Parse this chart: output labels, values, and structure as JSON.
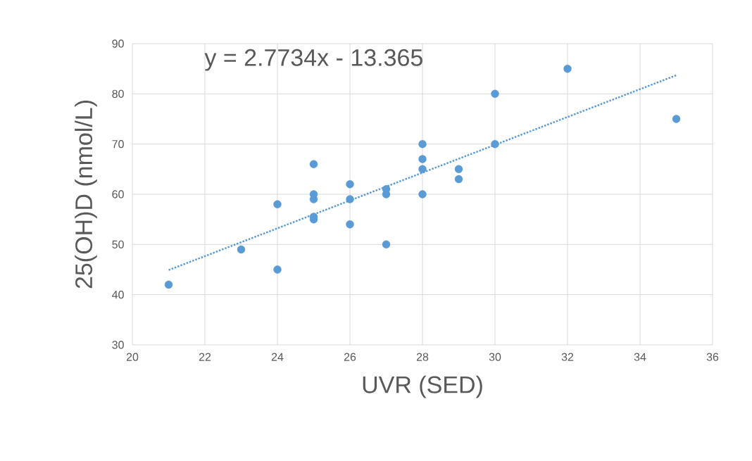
{
  "chart_data": {
    "type": "scatter",
    "xlabel": "UVR (SED)",
    "ylabel": "25(OH)D (nmol/L)",
    "annotations": [
      "y = 2.7734x - 13.365"
    ],
    "xlim": [
      20,
      36
    ],
    "xticks": [
      20,
      22,
      24,
      26,
      28,
      30,
      32,
      34,
      36
    ],
    "ylim": [
      30,
      90
    ],
    "yticks": [
      30,
      40,
      50,
      60,
      70,
      80,
      90
    ],
    "grid": true,
    "series": [
      {
        "marker": "circle",
        "color": "#5b9bd5",
        "x": [
          21,
          23,
          24,
          24,
          25,
          25,
          25,
          25,
          25,
          26,
          26,
          26,
          27,
          27,
          27,
          28,
          28,
          28,
          28,
          29,
          29,
          30,
          30,
          32,
          35
        ],
        "values": [
          42,
          49,
          58,
          45,
          66,
          60,
          59,
          55.5,
          55,
          62,
          59,
          54,
          61,
          60,
          50,
          70,
          67,
          65,
          60,
          65,
          63,
          80,
          70,
          85,
          75
        ]
      },
      {
        "type": "line",
        "marker": "none",
        "line_style": "dotted",
        "color": "#5b9bd5",
        "x": [
          21,
          35
        ],
        "values": [
          44.9,
          83.7
        ]
      }
    ]
  }
}
